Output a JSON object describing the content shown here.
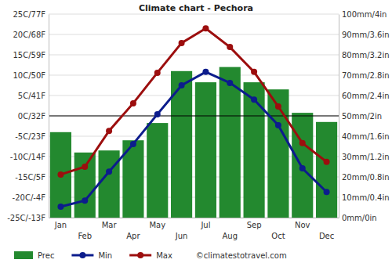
{
  "chart_data": {
    "type": "combo",
    "title": "Climate chart - Pechora",
    "categories": [
      "Jan",
      "Feb",
      "Mar",
      "Apr",
      "May",
      "Jun",
      "Jul",
      "Aug",
      "Sep",
      "Oct",
      "Nov",
      "Dec"
    ],
    "series": [
      {
        "name": "Prec",
        "type": "bar",
        "axis": "y2",
        "color": "#23892f",
        "values": [
          42,
          32,
          33,
          38,
          46.5,
          72,
          66.5,
          74,
          66.5,
          63,
          51.5,
          47
        ]
      },
      {
        "name": "Min",
        "type": "line",
        "color": "#0c1c8c",
        "marker": "circle",
        "values": [
          -22.3,
          -20.8,
          -13.7,
          -6.9,
          0.4,
          7.5,
          10.8,
          8.1,
          4.0,
          -2.3,
          -12.9,
          -18.7
        ]
      },
      {
        "name": "Max",
        "type": "line",
        "color": "#9c0e0e",
        "marker": "circle",
        "values": [
          -14.4,
          -12.5,
          -3.7,
          3.1,
          10.6,
          17.9,
          21.5,
          16.9,
          10.8,
          2.3,
          -6.7,
          -11.3
        ]
      }
    ],
    "ylim": [
      -25,
      25
    ],
    "yticks": [
      {
        "value": 25,
        "label": "25C/77F"
      },
      {
        "value": 20,
        "label": "20C/68F"
      },
      {
        "value": 15,
        "label": "15C/59F"
      },
      {
        "value": 10,
        "label": "10C/50F"
      },
      {
        "value": 5,
        "label": "5C/41F"
      },
      {
        "value": 0,
        "label": "0C/32F"
      },
      {
        "value": -5,
        "label": "-5C/23F"
      },
      {
        "value": -10,
        "label": "-10C/14F"
      },
      {
        "value": -15,
        "label": "-15C/5F"
      },
      {
        "value": -20,
        "label": "-20C/-4F"
      },
      {
        "value": -25,
        "label": "-25C/-13F"
      }
    ],
    "y2lim": [
      0,
      100
    ],
    "y2ticks": [
      {
        "value": 100,
        "label": "100mm/4in"
      },
      {
        "value": 90,
        "label": "90mm/3.6in"
      },
      {
        "value": 80,
        "label": "80mm/3.2in"
      },
      {
        "value": 70,
        "label": "70mm/2.8in"
      },
      {
        "value": 60,
        "label": "60mm/2.4in"
      },
      {
        "value": 50,
        "label": "50mm/2in"
      },
      {
        "value": 40,
        "label": "40mm/1.6in"
      },
      {
        "value": 30,
        "label": "30mm/1.2in"
      },
      {
        "value": 20,
        "label": "20mm/0.8in"
      },
      {
        "value": 10,
        "label": "10mm/0.4in"
      },
      {
        "value": 0,
        "label": "0mm/0in"
      }
    ],
    "grid": true,
    "legend": "bottom",
    "annotations": [
      "©climatestotravel.com"
    ]
  }
}
